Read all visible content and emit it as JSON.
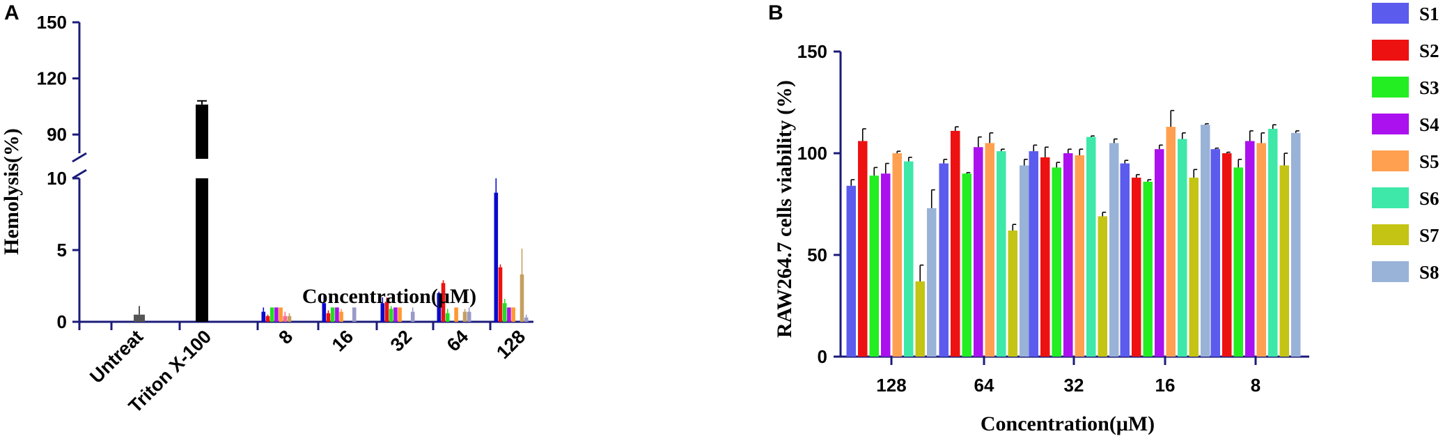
{
  "panels": {
    "a_letter": "A",
    "b_letter": "B"
  },
  "chart_data": [
    {
      "type": "bar",
      "panel": "A",
      "ylabel": "Hemolysis(%)",
      "xlabel": "Concentration(μM)",
      "y_axis_break": true,
      "lower_segment": {
        "ylim": [
          0,
          10
        ],
        "ticks": [
          0,
          5,
          10
        ]
      },
      "upper_segment": {
        "ylim": [
          80,
          150
        ],
        "ticks": [
          90,
          120,
          150
        ]
      },
      "y_tick_labels": [
        "0",
        "5",
        "10",
        "90",
        "120",
        "150"
      ],
      "controls": [
        {
          "label": "Untreat",
          "value": 0.5,
          "error": 0.6,
          "color": "#555555"
        },
        {
          "label": "Triton X-100",
          "value": 106,
          "error": 2,
          "color": "#000000"
        }
      ],
      "categories": [
        "8",
        "16",
        "32",
        "64",
        "128"
      ],
      "series": [
        {
          "name": "S1",
          "color": "#0a0acc",
          "values": [
            0.7,
            1.3,
            1.3,
            2.0,
            9.0
          ],
          "errors": [
            0.3,
            0.6,
            0.4,
            0.1,
            1.0
          ]
        },
        {
          "name": "S2",
          "color": "#ee1111",
          "values": [
            0.4,
            0.6,
            1.4,
            2.7,
            3.8
          ],
          "errors": [
            0.1,
            0.2,
            0.3,
            0.2,
            0.2
          ]
        },
        {
          "name": "S3",
          "color": "#22dd22",
          "values": [
            1.0,
            1.0,
            0.9,
            0.6,
            1.3
          ],
          "errors": [
            0.0,
            0.0,
            0.2,
            0.3,
            0.3
          ]
        },
        {
          "name": "S4",
          "color": "#aa11ee",
          "values": [
            1.0,
            1.0,
            1.0,
            0.0,
            1.0
          ],
          "errors": [
            0.0,
            0.0,
            0.0,
            0.0,
            0.0
          ]
        },
        {
          "name": "S5",
          "color": "#ff9933",
          "values": [
            1.0,
            0.7,
            1.0,
            1.0,
            1.0
          ],
          "errors": [
            0.0,
            0.2,
            0.0,
            0.0,
            0.0
          ]
        },
        {
          "name": "S6",
          "color": "#ff6699",
          "values": [
            0.4,
            0.0,
            0.0,
            0.0,
            0.0
          ],
          "errors": [
            0.3,
            0.0,
            0.0,
            0.0,
            0.0
          ]
        },
        {
          "name": "S7",
          "color": "#c4a060",
          "values": [
            0.4,
            0.0,
            0.0,
            0.7,
            3.3
          ],
          "errors": [
            0.2,
            0.0,
            0.0,
            0.2,
            1.8
          ]
        },
        {
          "name": "S8",
          "color": "#9a9ac8",
          "values": [
            0.0,
            1.0,
            0.7,
            0.7,
            0.3
          ],
          "errors": [
            0.0,
            0.0,
            0.3,
            0.3,
            0.2
          ]
        }
      ]
    },
    {
      "type": "bar",
      "panel": "B",
      "ylabel": "RAW264.7 cells viability (%)",
      "xlabel": "Concentration(μM)",
      "ylim": [
        0,
        150
      ],
      "y_ticks": [
        "0",
        "50",
        "100",
        "150"
      ],
      "categories": [
        "128",
        "64",
        "32",
        "16",
        "8"
      ],
      "legend_position": "right",
      "series": [
        {
          "name": "S1",
          "color": "#5b5bee",
          "values": [
            84,
            95,
            101,
            95,
            102
          ],
          "errors": [
            3,
            2,
            3,
            1.5,
            0.5
          ]
        },
        {
          "name": "S2",
          "color": "#ee1111",
          "values": [
            106,
            111,
            98,
            88,
            100
          ],
          "errors": [
            6,
            2,
            5,
            1.5,
            0.5
          ]
        },
        {
          "name": "S3",
          "color": "#22ee22",
          "values": [
            89,
            90,
            93,
            86,
            93
          ],
          "errors": [
            4,
            0.5,
            2.5,
            1,
            4
          ]
        },
        {
          "name": "S4",
          "color": "#aa11ee",
          "values": [
            90,
            103,
            100,
            102,
            106
          ],
          "errors": [
            5,
            5,
            2,
            2,
            5
          ]
        },
        {
          "name": "S5",
          "color": "#ffa050",
          "values": [
            100,
            105,
            99,
            113,
            105
          ],
          "errors": [
            1,
            5,
            3,
            8,
            5
          ]
        },
        {
          "name": "S6",
          "color": "#3ee8a8",
          "values": [
            96,
            101,
            108,
            107,
            112
          ],
          "errors": [
            2,
            1,
            0.5,
            3,
            2
          ]
        },
        {
          "name": "S7",
          "color": "#c4c414",
          "values": [
            37,
            62,
            69,
            88,
            94
          ],
          "errors": [
            8,
            3,
            2,
            4,
            6
          ]
        },
        {
          "name": "S8",
          "color": "#99b2d8",
          "values": [
            73,
            94,
            105,
            114,
            110
          ],
          "errors": [
            9,
            3,
            2,
            0.5,
            1
          ]
        }
      ]
    }
  ]
}
